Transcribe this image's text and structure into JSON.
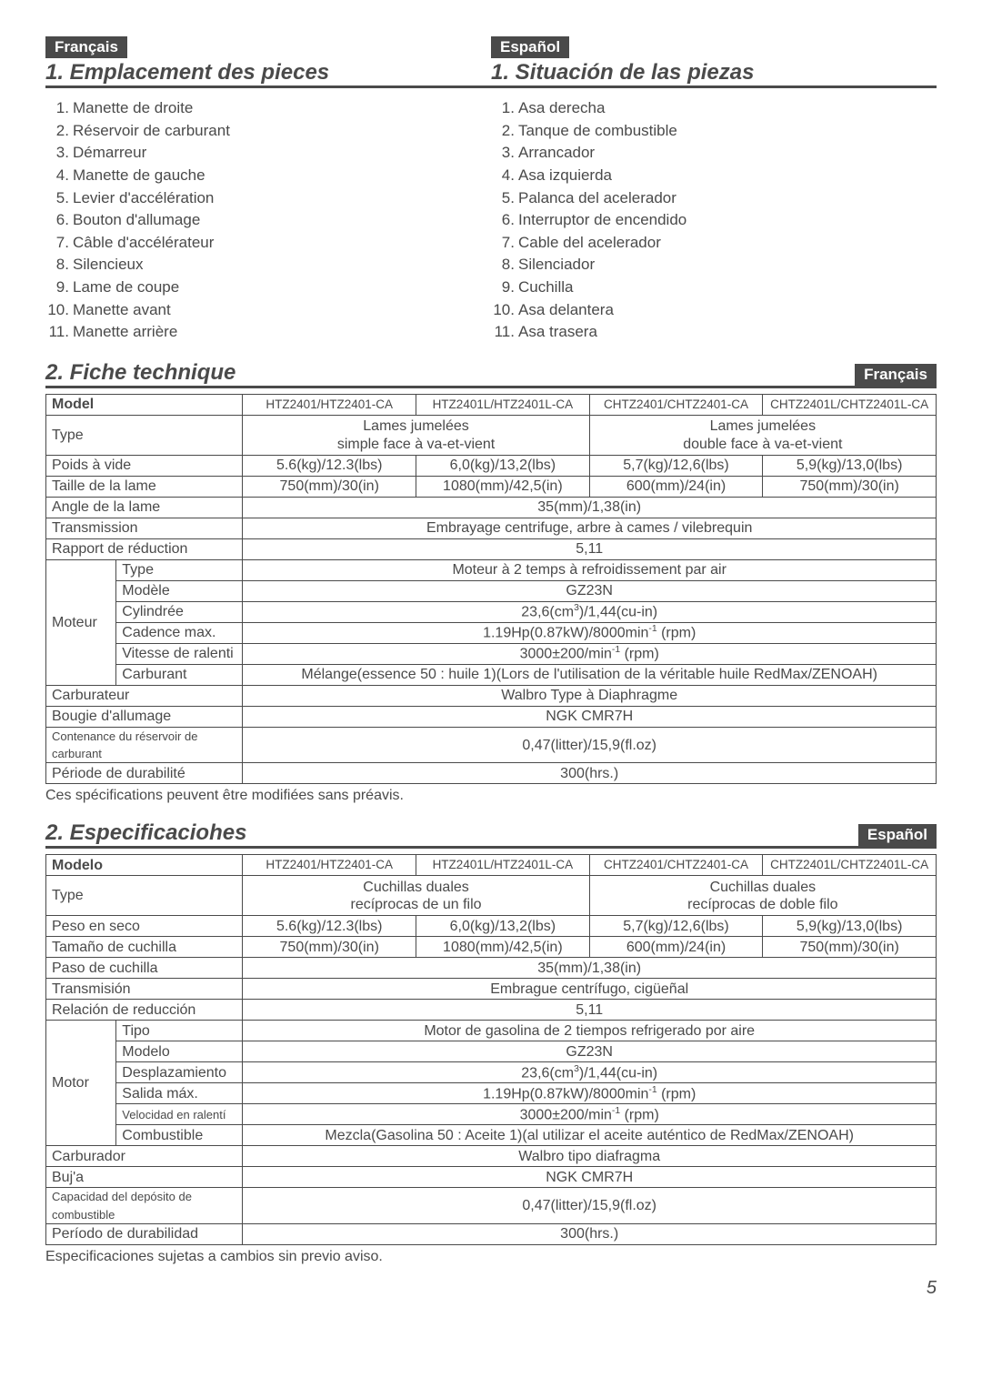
{
  "fr": {
    "lang_label": "Français",
    "parts_title": "1. Emplacement des pieces",
    "parts": [
      "Manette de droite",
      "Réservoir de carburant",
      "Démarreur",
      "Manette de gauche",
      "Levier d'accélération",
      "Bouton d'allumage",
      "Câble d'accélérateur",
      "Silencieux",
      "Lame de coupe",
      "Manette avant",
      "Manette arrière"
    ],
    "spec_title": "2. Fiche technique",
    "footnote": "Ces spécifications peuvent être modifiées sans préavis.",
    "labels": {
      "model": "Model",
      "type": "Type",
      "dry_weight": "Poids à vide",
      "blade_size": "Taille de la lame",
      "blade_angle": "Angle de la lame",
      "transmission": "Transmission",
      "reduction": "Rapport de réduction",
      "engine": "Moteur",
      "engine_type": "Type",
      "engine_model": "Modèle",
      "displacement": "Cylindrée",
      "max_output": "Cadence max.",
      "idle_speed": "Vitesse de ralenti",
      "fuel": "Carburant",
      "carburetor": "Carburateur",
      "spark_plug": "Bougie d'allumage",
      "fuel_tank_cap": "Contenance du réservoir de carburant",
      "durability": "Période de durabilité"
    },
    "values": {
      "type_a": "Lames jumelées\nsimple face à va-et-vient",
      "type_b": "Lames jumelées\ndouble face à va-et-vient",
      "transmission": "Embrayage centrifuge, arbre à cames / vilebrequin",
      "engine_type": "Moteur à 2 temps à refroidissement par air",
      "fuel": "Mélange(essence 50 : huile 1)(Lors de l'utilisation de la véritable huile RedMax/ZENOAH)",
      "carburetor": "Walbro Type à Diaphragme"
    }
  },
  "es": {
    "lang_label": "Español",
    "parts_title": "1. Situación de las piezas",
    "parts": [
      "Asa derecha",
      "Tanque de combustible",
      "Arrancador",
      "Asa izquierda",
      "Palanca del acelerador",
      "Interruptor de encendido",
      "Cable del acelerador",
      "Silenciador",
      "Cuchilla",
      "Asa delantera",
      "Asa trasera"
    ],
    "spec_title": "2. Especificaciohes",
    "footnote": "Especificaciones sujetas a cambios sin previo aviso.",
    "labels": {
      "model": "Modelo",
      "type": "Type",
      "dry_weight": "Peso en seco",
      "blade_size": "Tamaño de cuchilla",
      "blade_angle": "Paso de cuchilla",
      "transmission": "Transmisión",
      "reduction": "Relación de reducción",
      "engine": "Motor",
      "engine_type": "Tipo",
      "engine_model": "Modelo",
      "displacement": "Desplazamiento",
      "max_output": "Salida máx.",
      "idle_speed": "Velocidad en ralentí",
      "fuel": "Combustible",
      "carburetor": "Carburador",
      "spark_plug": "Buj'a",
      "fuel_tank_cap": "Capacidad del depósito de combustible",
      "durability": "Período de durabilidad"
    },
    "values": {
      "type_a": "Cuchillas duales\nrecíprocas de un filo",
      "type_b": "Cuchillas duales\nrecíprocas de doble filo",
      "transmission": "Embrague centrífugo, cigüeñal",
      "engine_type": "Motor de gasolina de 2 tiempos refrigerado por aire",
      "fuel": "Mezcla(Gasolina 50 : Aceite 1)(al utilizar el aceite auténtico de RedMax/ZENOAH)",
      "carburetor": "Walbro tipo diafragma"
    }
  },
  "common": {
    "models": [
      "HTZ2401/HTZ2401-CA",
      "HTZ2401L/HTZ2401L-CA",
      "CHTZ2401/CHTZ2401-CA",
      "CHTZ2401L/CHTZ2401L-CA"
    ],
    "dry_weight": [
      "5.6(kg)/12.3(lbs)",
      "6,0(kg)/13,2(lbs)",
      "5,7(kg)/12,6(lbs)",
      "5,9(kg)/13,0(lbs)"
    ],
    "blade_size": [
      "750(mm)/30(in)",
      "1080(mm)/42,5(in)",
      "600(mm)/24(in)",
      "750(mm)/30(in)"
    ],
    "blade_angle": "35(mm)/1,38(in)",
    "reduction": "5,11",
    "engine_model": "GZ23N",
    "displacement_html": "23,6(cm<sup>3</sup>)/1,44(cu-in)",
    "max_output_html": "1.19Hp(0.87kW)/8000min<sup>-1</sup> (rpm)",
    "idle_speed_html": "3000±200/min<sup>-1</sup> (rpm)",
    "spark_plug": "NGK CMR7H",
    "fuel_tank_cap": "0,47(litter)/15,9(fl.oz)",
    "durability": "300(hrs.)"
  },
  "page_number": "5"
}
